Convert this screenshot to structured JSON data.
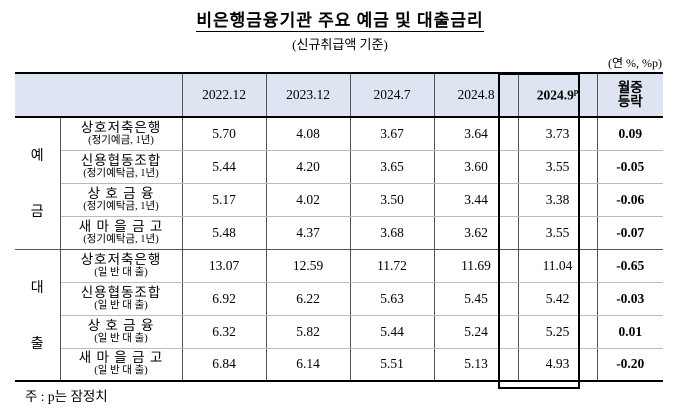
{
  "title": "비은행금융기관 주요 예금 및 대출금리",
  "subtitle": "(신규취급액 기준)",
  "unit": "(연 %, %p)",
  "columns": [
    "2022.12",
    "2023.12",
    "2024.7",
    "2024.8",
    "2024.9",
    "p",
    "월중",
    "등락"
  ],
  "deposit": {
    "label_top": "예",
    "label_bottom": "금",
    "rows": [
      {
        "name": "상호저축은행",
        "sub": "(정기예금, 1년)",
        "v": [
          "5.70",
          "4.08",
          "3.67",
          "3.64",
          "3.73"
        ],
        "chg": "0.09"
      },
      {
        "name": "신용협동조합",
        "sub": "(정기예탁금, 1년)",
        "v": [
          "5.44",
          "4.20",
          "3.65",
          "3.60",
          "3.55"
        ],
        "chg": "-0.05"
      },
      {
        "name": "상 호 금 융",
        "sub": "(정기예탁금, 1년)",
        "v": [
          "5.17",
          "4.02",
          "3.50",
          "3.44",
          "3.38"
        ],
        "chg": "-0.06"
      },
      {
        "name": "새 마 을 금 고",
        "sub": "(정기예탁금, 1년)",
        "v": [
          "5.48",
          "4.37",
          "3.68",
          "3.62",
          "3.55"
        ],
        "chg": "-0.07"
      }
    ]
  },
  "loan": {
    "label_top": "대",
    "label_bottom": "출",
    "rows": [
      {
        "name": "상호저축은행",
        "sub": "(일 반 대 출)",
        "v": [
          "13.07",
          "12.59",
          "11.72",
          "11.69",
          "11.04"
        ],
        "chg": "-0.65"
      },
      {
        "name": "신용협동조합",
        "sub": "(일 반 대 출)",
        "v": [
          "6.92",
          "6.22",
          "5.63",
          "5.45",
          "5.42"
        ],
        "chg": "-0.03"
      },
      {
        "name": "상 호 금 융",
        "sub": "(일 반 대 출)",
        "v": [
          "6.32",
          "5.82",
          "5.44",
          "5.24",
          "5.25"
        ],
        "chg": "0.01"
      },
      {
        "name": "새 마 을 금 고",
        "sub": "(일 반 대 출)",
        "v": [
          "6.84",
          "6.14",
          "5.51",
          "5.13",
          "4.93"
        ],
        "chg": "-0.20"
      }
    ]
  },
  "note": "주 : p는 잠정치"
}
